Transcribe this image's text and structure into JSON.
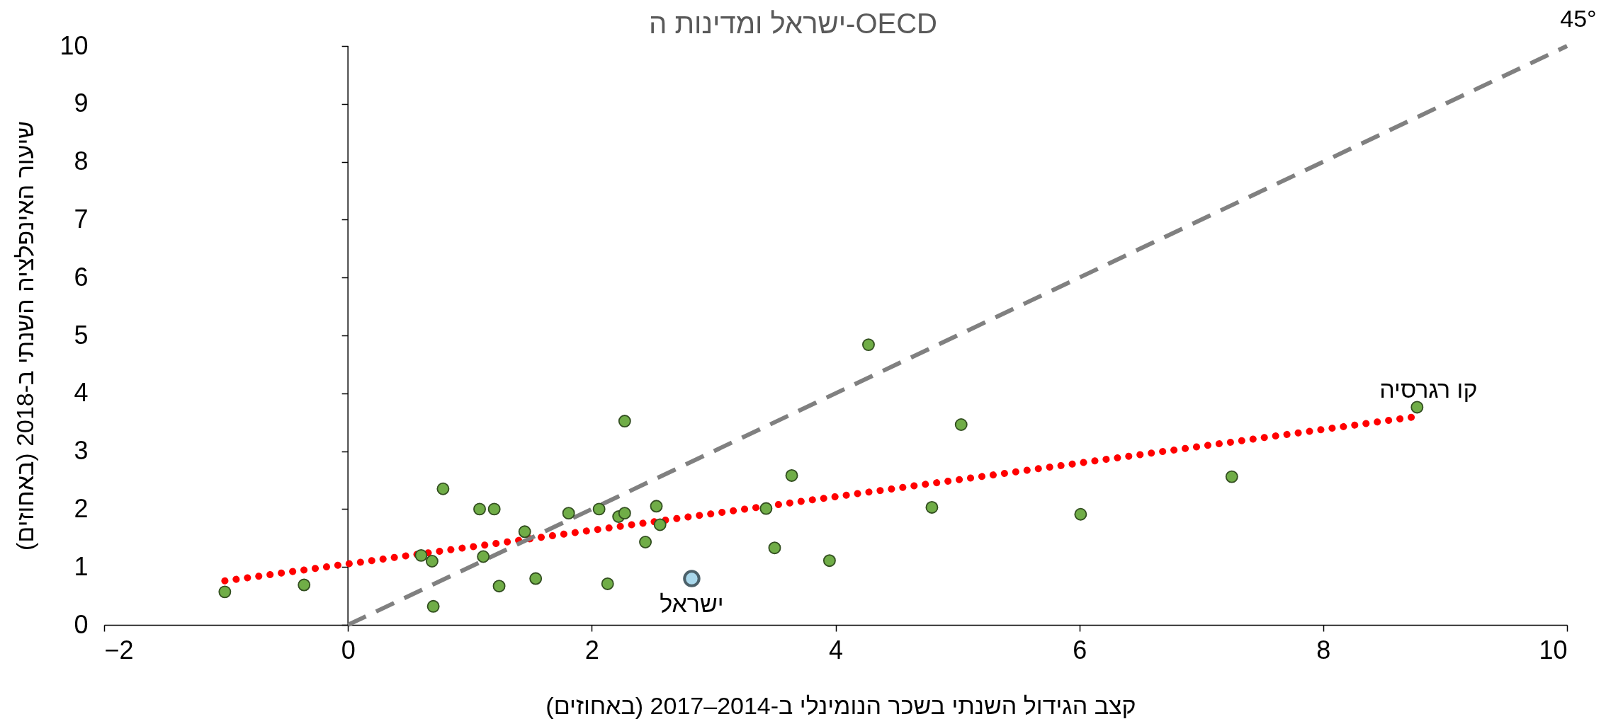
{
  "chart_data": {
    "type": "scatter",
    "title": "ישראל ומדינות ה-OECD",
    "xlabel": "קצב הגידול השנתי בשכר הנומינלי ב-2014–2017 (באחוזים)",
    "ylabel": "שיעור האינפלציה השנתי ב-2018 (באחוזים)",
    "xlim": [
      -2,
      10
    ],
    "xticks": [
      -2,
      0,
      2,
      4,
      6,
      8,
      10
    ],
    "ylim": [
      0,
      10
    ],
    "yticks": [
      0,
      1,
      2,
      3,
      4,
      5,
      6,
      7,
      8,
      9,
      10
    ],
    "grid": false,
    "marker": "circle",
    "ref_lines": [
      {
        "axis": "x",
        "value": 0,
        "color": "#000000",
        "line_style": "solid"
      }
    ],
    "series": [
      {
        "type": "scatter",
        "color": "#70ad47",
        "x": [
          -1.01,
          -0.36,
          0.6,
          0.69,
          0.7,
          0.78,
          1.08,
          1.11,
          1.2,
          1.24,
          1.45,
          1.54,
          1.81,
          2.06,
          2.13,
          2.22,
          2.27,
          2.27,
          2.53,
          2.56,
          2.44,
          3.43,
          3.5,
          3.64,
          3.95,
          4.27,
          4.79,
          5.03,
          6.01,
          7.25,
          8.77
        ],
        "values": [
          0.57,
          0.69,
          1.2,
          1.1,
          0.32,
          2.35,
          2.0,
          1.18,
          2.0,
          0.67,
          1.61,
          0.8,
          1.93,
          2.0,
          0.71,
          1.87,
          1.93,
          3.52,
          2.05,
          1.73,
          1.43,
          2.01,
          1.33,
          2.58,
          1.11,
          4.84,
          2.03,
          3.46,
          1.91,
          2.56,
          3.76
        ]
      },
      {
        "type": "scatter",
        "color": "#a9d8ec",
        "x": [
          2.82
        ],
        "values": [
          0.8
        ]
      },
      {
        "type": "line",
        "color": "#ff0000",
        "line_style": "dotted",
        "marker": "none",
        "x": [
          -1.01,
          8.77
        ],
        "values": [
          0.76,
          3.6
        ]
      },
      {
        "type": "line",
        "color": "#808080",
        "line_style": "dashed",
        "marker": "none",
        "x": [
          0,
          10
        ],
        "values": [
          0,
          10
        ]
      }
    ],
    "annotations": [
      {
        "text": "ישראל",
        "x": 2.82,
        "y": 0.8
      },
      {
        "text": "קו רגרסיה",
        "x": 8.77,
        "y": 3.6
      },
      {
        "text": "45°",
        "x": 10,
        "y": 10
      }
    ]
  }
}
